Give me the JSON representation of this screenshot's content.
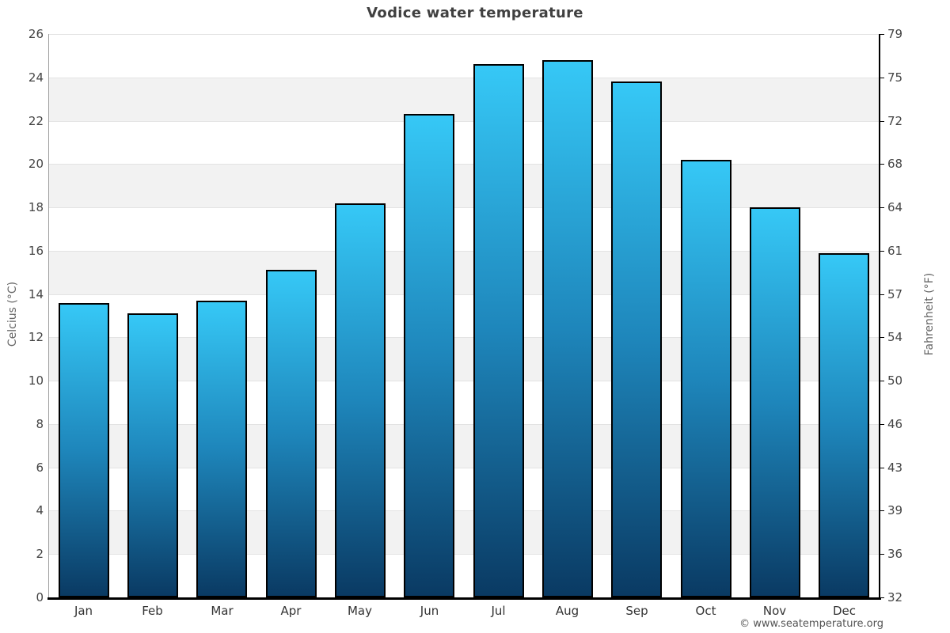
{
  "title": "Vodice water temperature",
  "axes": {
    "left_label": "Celcius (°C)",
    "right_label": "Fahrenheit (°F)"
  },
  "footer": {
    "credit": "© www.seatemperature.org"
  },
  "chart_data": {
    "type": "bar",
    "title": "Vodice water temperature",
    "categories": [
      "Jan",
      "Feb",
      "Mar",
      "Apr",
      "May",
      "Jun",
      "Jul",
      "Aug",
      "Sep",
      "Oct",
      "Nov",
      "Dec"
    ],
    "series": [
      {
        "name": "Water temperature",
        "unit": "°C",
        "values": [
          13.6,
          13.1,
          13.7,
          15.1,
          18.2,
          22.3,
          24.6,
          24.8,
          23.8,
          20.2,
          18.0,
          15.9
        ]
      }
    ],
    "ylabel": "Celcius (°C)",
    "ylabel_secondary": "Fahrenheit (°F)",
    "xlabel": "",
    "ylim": [
      0,
      26
    ],
    "yticks": [
      0,
      2,
      4,
      6,
      8,
      10,
      12,
      14,
      16,
      18,
      20,
      22,
      24,
      26
    ],
    "yticks_right": [
      "32",
      "36",
      "39",
      "43",
      "46",
      "50",
      "54",
      "57",
      "61",
      "64",
      "68",
      "72",
      "75",
      "79"
    ],
    "legend": "none",
    "grid": "horizontal-gridlines-with-alternating-bands",
    "colors": {
      "bar_top": "#36c8f6",
      "bar_mid": "#1e86bb",
      "bar_bottom": "#0a3a63",
      "bar_border": "#000000",
      "band": "#f2f2f2",
      "gridline": "#e3e3e3",
      "title": "#404040",
      "tick": "#444444",
      "axis_label": "#666666"
    }
  }
}
